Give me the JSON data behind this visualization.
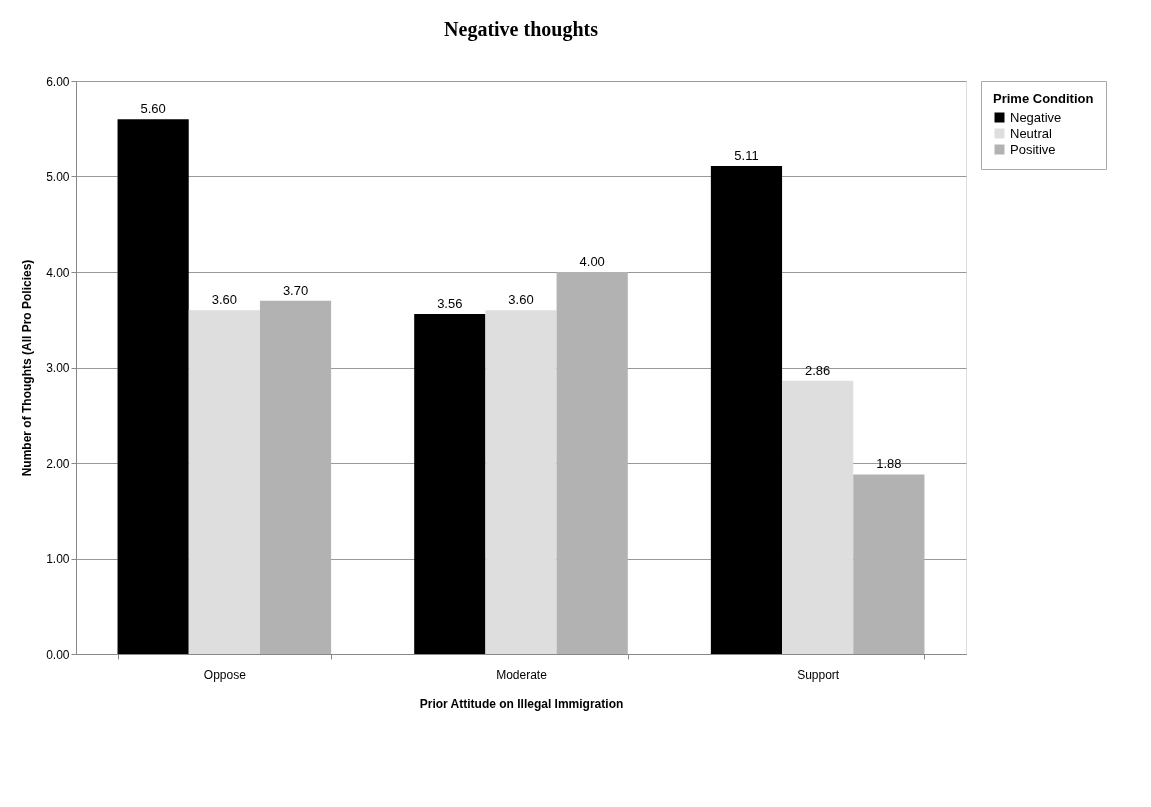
{
  "chart_data": {
    "type": "bar",
    "title": "Negative thoughts",
    "xlabel": "Prior Attitude on Illegal Immigration",
    "ylabel": "Number of Thoughts (All Pro Policies)",
    "legend_title": "Prime Condition",
    "legend": "right",
    "grid": "y",
    "categories": [
      "Oppose",
      "Moderate",
      "Support"
    ],
    "ylim": [
      0,
      6
    ],
    "yticks": [
      {
        "value": 0,
        "label": "0.00"
      },
      {
        "value": 1,
        "label": "1.00"
      },
      {
        "value": 2,
        "label": "2.00"
      },
      {
        "value": 3,
        "label": "3.00"
      },
      {
        "value": 4,
        "label": "4.00"
      },
      {
        "value": 5,
        "label": "5.00"
      },
      {
        "value": 6,
        "label": "6.00"
      }
    ],
    "series": [
      {
        "name": "Negative",
        "color": "#000000",
        "values": [
          5.6,
          3.56,
          5.11
        ],
        "value_labels": [
          "5.60",
          "3.56",
          "5.11"
        ]
      },
      {
        "name": "Neutral",
        "color": "#dedede",
        "values": [
          3.6,
          3.6,
          2.86
        ],
        "value_labels": [
          "3.60",
          "3.60",
          "2.86"
        ]
      },
      {
        "name": "Positive",
        "color": "#b2b2b2",
        "values": [
          3.7,
          4.0,
          1.88
        ],
        "value_labels": [
          "3.70",
          "4.00",
          "1.88"
        ]
      }
    ]
  }
}
